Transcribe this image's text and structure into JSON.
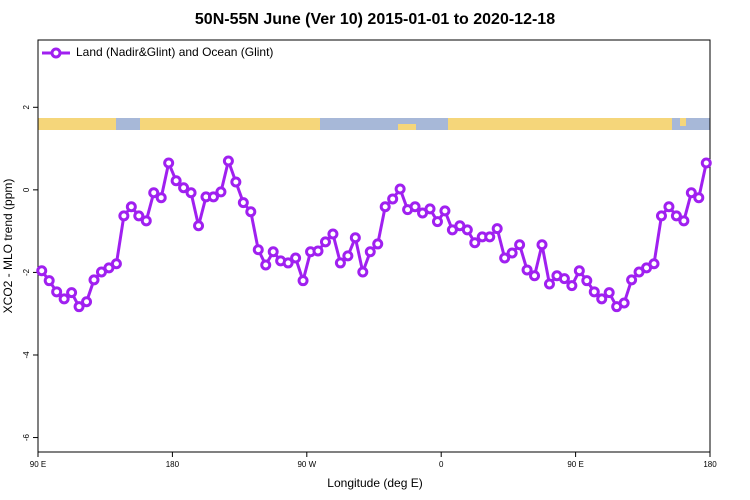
{
  "chart_data": {
    "type": "line",
    "title": "50N-55N June (Ver 10)   2015-01-01 to 2020-12-18",
    "x_label": "Longitude (deg E)",
    "y_label": "XCO2 - MLO trend (ppm)",
    "xlim": [
      90,
      540
    ],
    "ylim": [
      -6.35,
      3.63
    ],
    "xticks": [
      {
        "value": 90,
        "label": "90 E"
      },
      180,
      {
        "value": 270,
        "label": "90 W"
      },
      {
        "value": 360,
        "label": "0"
      },
      {
        "value": 450,
        "label": "90 E"
      },
      {
        "value": 540,
        "label": "180"
      }
    ],
    "yticks": [
      -6,
      -4,
      -2,
      0,
      2
    ],
    "x": [
      92.5,
      97.5,
      102.5,
      107.5,
      112.5,
      117.5,
      122.5,
      127.5,
      132.5,
      137.5,
      142.5,
      147.5,
      152.5,
      157.5,
      162.5,
      167.5,
      172.5,
      177.5,
      182.5,
      187.5,
      192.5,
      197.5,
      202.5,
      207.5,
      212.5,
      217.5,
      222.5,
      227.5,
      232.5,
      237.5,
      242.5,
      247.5,
      252.5,
      257.5,
      262.5,
      267.5,
      272.5,
      277.5,
      282.5,
      287.5,
      292.5,
      297.5,
      302.5,
      307.5,
      312.5,
      317.5,
      322.5,
      327.5,
      332.5,
      337.5,
      342.5,
      347.5,
      352.5,
      357.5,
      362.5,
      367.5,
      372.5,
      377.5,
      382.5,
      387.5,
      392.5,
      397.5,
      402.5,
      407.5,
      412.5,
      417.5,
      422.5,
      427.5,
      432.5,
      437.5,
      442.5,
      447.5,
      452.5,
      457.5,
      462.5,
      467.5,
      472.5,
      477.5,
      482.5,
      487.5,
      492.5,
      497.5,
      502.5,
      507.5,
      512.5,
      517.5,
      522.5,
      527.5,
      532.5,
      537.5
    ],
    "series": [
      {
        "name": "Land (Nadir&Glint) and Ocean (Glint)",
        "color": "#a020f0",
        "values": [
          -1.96,
          -2.2,
          -2.47,
          -2.64,
          -2.49,
          -2.83,
          -2.71,
          -2.18,
          -1.99,
          -1.89,
          -1.79,
          -0.63,
          -0.41,
          -0.63,
          -0.75,
          -0.07,
          -0.19,
          0.65,
          0.22,
          0.05,
          -0.07,
          -0.87,
          -0.17,
          -0.17,
          -0.05,
          0.7,
          0.19,
          -0.31,
          -0.53,
          -1.45,
          -1.82,
          -1.5,
          -1.72,
          -1.77,
          -1.65,
          -2.2,
          -1.5,
          -1.48,
          -1.26,
          -1.07,
          -1.77,
          -1.6,
          -1.16,
          -1.99,
          -1.5,
          -1.31,
          -0.41,
          -0.22,
          0.02,
          -0.48,
          -0.41,
          -0.56,
          -0.46,
          -0.77,
          -0.51,
          -0.97,
          -0.87,
          -0.97,
          -1.28,
          -1.14,
          -1.14,
          -0.94,
          -1.65,
          -1.53,
          -1.33,
          -1.94,
          -2.08,
          -1.33,
          -2.28,
          -2.08,
          -2.15,
          -2.32,
          -1.96,
          -2.2,
          -2.47,
          -2.64,
          -2.49,
          -2.83,
          -2.74,
          -2.18,
          -1.99,
          -1.89,
          -1.79,
          -0.63,
          -0.41,
          -0.63,
          -0.75,
          -0.07,
          -0.19,
          0.65
        ]
      }
    ]
  }
}
